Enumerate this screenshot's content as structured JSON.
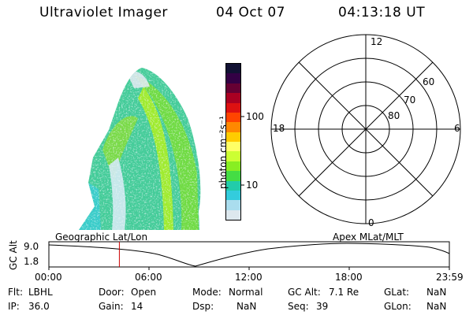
{
  "header": {
    "instrument": "Ultraviolet Imager",
    "date": "04 Oct 07",
    "time": "04:13:18 UT"
  },
  "colorbar": {
    "unit_label": "photon cm⁻²s⁻¹",
    "tick_labels": [
      "100",
      "10"
    ],
    "colors": [
      "#111133",
      "#330044",
      "#660033",
      "#aa0022",
      "#dd1111",
      "#ff4400",
      "#ff8800",
      "#ffcc00",
      "#ffff66",
      "#ccff33",
      "#88ee22",
      "#44dd44",
      "#22ccaa",
      "#33ccdd",
      "#aaddee",
      "#dde8ee"
    ]
  },
  "polar_grid": {
    "mlt_labels": {
      "top": "12",
      "left": "18",
      "right": "6",
      "bottom": "0"
    },
    "lat_labels": [
      "60",
      "70",
      "80"
    ]
  },
  "timeline": {
    "left_title": "Geographic Lat/Lon",
    "right_title": "Apex MLat/MLT",
    "y_axis_label": "GC Alt",
    "y_ticks": [
      "9.0",
      "1.8"
    ],
    "x_ticks": [
      "00:00",
      "06:00",
      "12:00",
      "18:00",
      "23:59"
    ],
    "marker_time_fraction": 0.176
  },
  "info": {
    "flt": {
      "label": "Flt:",
      "value": "LBHL"
    },
    "ip": {
      "label": "IP:",
      "value": "36.0"
    },
    "door": {
      "label": "Door:",
      "value": "Open"
    },
    "gain": {
      "label": "Gain:",
      "value": "14"
    },
    "mode": {
      "label": "Mode:",
      "value": "Normal"
    },
    "dsp": {
      "label": "Dsp:",
      "value": "NaN"
    },
    "gcalt": {
      "label": "GC Alt:",
      "value": "7.1 Re"
    },
    "seq": {
      "label": "Seq:",
      "value": "39"
    },
    "glat": {
      "label": "GLat:",
      "value": "NaN"
    },
    "glon": {
      "label": "GLon:",
      "value": "NaN"
    }
  }
}
